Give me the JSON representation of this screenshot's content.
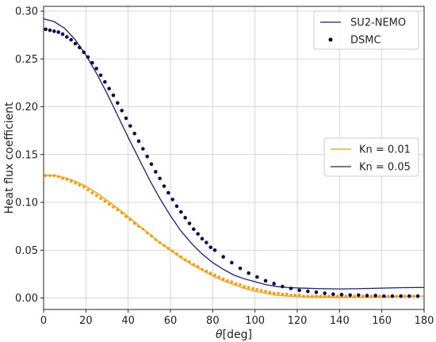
{
  "chart_data": {
    "type": "line",
    "title": "",
    "xlabel_symbol": "θ",
    "xlabel_unit": "[deg]",
    "ylabel": "Heat flux coefficient",
    "xlim": [
      0,
      180
    ],
    "ylim": [
      -0.012,
      0.305
    ],
    "xticks": [
      0,
      20,
      40,
      60,
      80,
      100,
      120,
      140,
      160,
      180
    ],
    "yticks": [
      0.0,
      0.05,
      0.1,
      0.15,
      0.2,
      0.25,
      0.3
    ],
    "ytick_labels": [
      "0.00",
      "0.05",
      "0.10",
      "0.15",
      "0.20",
      "0.25",
      "0.30"
    ],
    "grid": true,
    "colors": {
      "kn001": "#ff9900",
      "kn005": "#1a1a8c",
      "dsmc_markers": "#0d0d4d",
      "grid": "#cccccc",
      "axis": "#262626"
    },
    "legends": {
      "method": {
        "placement": "top-right",
        "entries": [
          {
            "label": "SU2-NEMO",
            "style": "line"
          },
          {
            "label": "DSMC",
            "style": "marker"
          }
        ]
      },
      "knudsen": {
        "placement": "center-right",
        "entries": [
          {
            "label": "Kn = 0.01",
            "style": "line",
            "colorKey": "kn001"
          },
          {
            "label": "Kn = 0.05",
            "style": "line",
            "colorKey": "kn005"
          }
        ]
      }
    },
    "series": [
      {
        "name": "Kn = 0.01",
        "method": "SU2-NEMO",
        "colorKey": "kn001",
        "style": "line",
        "points": [
          [
            0,
            0.129
          ],
          [
            5,
            0.128
          ],
          [
            10,
            0.126
          ],
          [
            15,
            0.122
          ],
          [
            20,
            0.117
          ],
          [
            25,
            0.11
          ],
          [
            30,
            0.102
          ],
          [
            35,
            0.094
          ],
          [
            40,
            0.085
          ],
          [
            45,
            0.076
          ],
          [
            50,
            0.067
          ],
          [
            55,
            0.058
          ],
          [
            60,
            0.05
          ],
          [
            65,
            0.042
          ],
          [
            70,
            0.035
          ],
          [
            75,
            0.029
          ],
          [
            80,
            0.023
          ],
          [
            85,
            0.018
          ],
          [
            90,
            0.014
          ],
          [
            95,
            0.01
          ],
          [
            100,
            0.007
          ],
          [
            105,
            0.005
          ],
          [
            110,
            0.003
          ],
          [
            115,
            0.002
          ],
          [
            120,
            0.0015
          ],
          [
            130,
            0.001
          ],
          [
            140,
            0.0008
          ],
          [
            150,
            0.0008
          ],
          [
            160,
            0.001
          ],
          [
            170,
            0.0015
          ],
          [
            180,
            0.002
          ]
        ]
      },
      {
        "name": "Kn = 0.01",
        "method": "DSMC",
        "colorKey": "kn001",
        "style": "marker",
        "x_start": 1,
        "x_step": 2,
        "y": [
          0.128,
          0.128,
          0.128,
          0.127,
          0.125,
          0.124,
          0.122,
          0.12,
          0.118,
          0.116,
          0.113,
          0.11,
          0.107,
          0.104,
          0.101,
          0.098,
          0.095,
          0.092,
          0.089,
          0.085,
          0.082,
          0.078,
          0.075,
          0.072,
          0.068,
          0.065,
          0.061,
          0.058,
          0.055,
          0.052,
          0.049,
          0.046,
          0.043,
          0.04,
          0.038,
          0.035,
          0.033,
          0.03,
          0.028,
          0.026,
          0.024,
          0.022,
          0.02,
          0.018,
          0.017,
          0.015,
          0.014,
          0.012,
          0.011,
          0.01,
          0.009,
          0.008,
          0.007,
          0.006,
          0.005,
          0.005,
          0.004,
          0.004,
          0.003,
          0.003,
          0.003,
          0.002,
          0.002,
          0.002,
          0.002,
          0.002,
          0.002,
          0.002,
          0.002,
          0.002,
          0.002,
          0.002,
          0.002,
          0.002,
          0.002,
          0.002,
          0.002,
          0.002,
          0.002,
          0.002,
          0.002,
          0.002,
          0.002,
          0.002,
          0.002,
          0.002,
          0.002,
          0.002,
          0.002
        ]
      },
      {
        "name": "Kn = 0.05",
        "method": "SU2-NEMO",
        "colorKey": "kn005",
        "style": "line",
        "points": [
          [
            0,
            0.292
          ],
          [
            5,
            0.289
          ],
          [
            10,
            0.282
          ],
          [
            15,
            0.27
          ],
          [
            20,
            0.254
          ],
          [
            25,
            0.235
          ],
          [
            30,
            0.214
          ],
          [
            35,
            0.191
          ],
          [
            40,
            0.168
          ],
          [
            45,
            0.146
          ],
          [
            50,
            0.124
          ],
          [
            55,
            0.104
          ],
          [
            60,
            0.086
          ],
          [
            65,
            0.07
          ],
          [
            70,
            0.057
          ],
          [
            75,
            0.046
          ],
          [
            80,
            0.037
          ],
          [
            85,
            0.03
          ],
          [
            90,
            0.024
          ],
          [
            95,
            0.02
          ],
          [
            100,
            0.017
          ],
          [
            105,
            0.014
          ],
          [
            110,
            0.012
          ],
          [
            115,
            0.011
          ],
          [
            120,
            0.0105
          ],
          [
            130,
            0.0098
          ],
          [
            140,
            0.0095
          ],
          [
            150,
            0.0098
          ],
          [
            160,
            0.0103
          ],
          [
            170,
            0.0108
          ],
          [
            180,
            0.011
          ]
        ]
      },
      {
        "name": "Kn = 0.05",
        "method": "DSMC",
        "colorKey": "kn005",
        "style": "marker",
        "points": [
          [
            1,
            0.281
          ],
          [
            3,
            0.28
          ],
          [
            5,
            0.279
          ],
          [
            7,
            0.278
          ],
          [
            9,
            0.276
          ],
          [
            11,
            0.273
          ],
          [
            13,
            0.27
          ],
          [
            15,
            0.266
          ],
          [
            17,
            0.262
          ],
          [
            19,
            0.257
          ],
          [
            21,
            0.252
          ],
          [
            23,
            0.246
          ],
          [
            25,
            0.24
          ],
          [
            27,
            0.233
          ],
          [
            29,
            0.226
          ],
          [
            31,
            0.219
          ],
          [
            33,
            0.212
          ],
          [
            35,
            0.204
          ],
          [
            37,
            0.196
          ],
          [
            39,
            0.188
          ],
          [
            41,
            0.18
          ],
          [
            43,
            0.172
          ],
          [
            45,
            0.164
          ],
          [
            47,
            0.156
          ],
          [
            49,
            0.148
          ],
          [
            51,
            0.14
          ],
          [
            53,
            0.132
          ],
          [
            55,
            0.125
          ],
          [
            57,
            0.117
          ],
          [
            59,
            0.11
          ],
          [
            61,
            0.103
          ],
          [
            63,
            0.096
          ],
          [
            65,
            0.09
          ],
          [
            67,
            0.084
          ],
          [
            69,
            0.078
          ],
          [
            71,
            0.072
          ],
          [
            73,
            0.067
          ],
          [
            75,
            0.062
          ],
          [
            77,
            0.058
          ],
          [
            79,
            0.053
          ],
          [
            81,
            0.05
          ],
          [
            85,
            0.043
          ],
          [
            89,
            0.037
          ],
          [
            93,
            0.031
          ],
          [
            97,
            0.026
          ],
          [
            101,
            0.022
          ],
          [
            105,
            0.018
          ],
          [
            109,
            0.015
          ],
          [
            113,
            0.012
          ],
          [
            117,
            0.01
          ],
          [
            121,
            0.008
          ],
          [
            125,
            0.007
          ],
          [
            129,
            0.006
          ],
          [
            133,
            0.005
          ],
          [
            137,
            0.004
          ],
          [
            141,
            0.0035
          ],
          [
            145,
            0.003
          ],
          [
            149,
            0.003
          ],
          [
            153,
            0.0025
          ],
          [
            157,
            0.0025
          ],
          [
            161,
            0.002
          ],
          [
            165,
            0.002
          ],
          [
            169,
            0.002
          ],
          [
            173,
            0.002
          ],
          [
            177,
            0.002
          ]
        ]
      }
    ]
  }
}
